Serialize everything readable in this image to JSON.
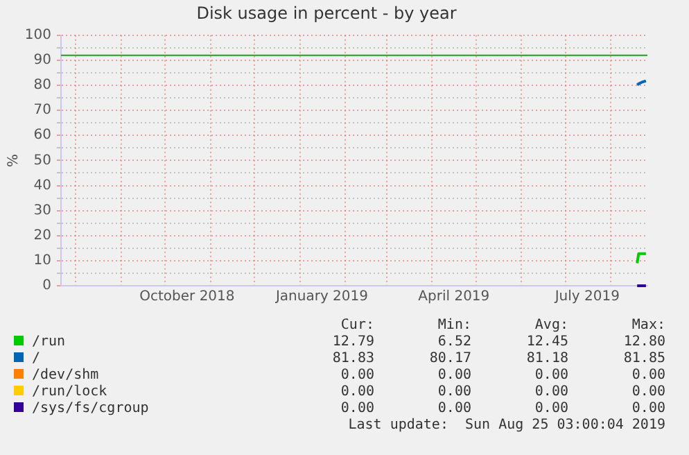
{
  "chart_data": {
    "type": "line",
    "title": "Disk usage in percent - by year",
    "ylabel": "%",
    "x": [
      "2019-08-19",
      "2019-08-20",
      "2019-08-22",
      "2019-08-25"
    ],
    "series": [
      {
        "name": "/run",
        "color": "#00cc00",
        "values": [
          9,
          12.8,
          12.8,
          12.8
        ]
      },
      {
        "name": "/",
        "color": "#0066b3",
        "values": [
          80.2,
          80.6,
          81.2,
          81.8
        ]
      },
      {
        "name": "/dev/shm",
        "color": "#ff8000",
        "values": [
          null,
          null,
          null,
          null
        ]
      },
      {
        "name": "/run/lock",
        "color": "#ffcc00",
        "values": [
          null,
          null,
          null,
          null
        ]
      },
      {
        "name": "/sys/fs/cgroup",
        "color": "#330099",
        "values": [
          0,
          0,
          0,
          0
        ]
      }
    ],
    "xlim": [
      "2018-07-22",
      "2019-08-26"
    ],
    "xticks": [
      {
        "value": "2018-08-01",
        "label": null
      },
      {
        "value": "2018-09-01",
        "label": null
      },
      {
        "value": "2018-10-01",
        "label": null
      },
      {
        "value": "2018-10-16",
        "label": "October 2018"
      },
      {
        "value": "2018-11-01",
        "label": null
      },
      {
        "value": "2018-12-01",
        "label": null
      },
      {
        "value": "2019-01-01",
        "label": null
      },
      {
        "value": "2019-01-16",
        "label": "January 2019"
      },
      {
        "value": "2019-02-01",
        "label": null
      },
      {
        "value": "2019-03-01",
        "label": null
      },
      {
        "value": "2019-04-01",
        "label": null
      },
      {
        "value": "2019-04-16",
        "label": "April 2019"
      },
      {
        "value": "2019-05-01",
        "label": null
      },
      {
        "value": "2019-06-01",
        "label": null
      },
      {
        "value": "2019-07-01",
        "label": null
      },
      {
        "value": "2019-07-16",
        "label": "July 2019"
      },
      {
        "value": "2019-08-01",
        "label": null
      }
    ],
    "ylim": [
      0,
      100
    ],
    "yticks": [
      0,
      {
        "value": 5,
        "label": null
      },
      10,
      {
        "value": 15,
        "label": null
      },
      20,
      {
        "value": 25,
        "label": null
      },
      30,
      {
        "value": 35,
        "label": null
      },
      40,
      {
        "value": 45,
        "label": null
      },
      50,
      {
        "value": 55,
        "label": null
      },
      60,
      {
        "value": 65,
        "label": null
      },
      70,
      {
        "value": 75,
        "label": null
      },
      80,
      {
        "value": 85,
        "label": null
      },
      90,
      {
        "value": 95,
        "label": null
      },
      100
    ],
    "grid": true,
    "legend": "bottom",
    "marker": "none",
    "line_style": "solid",
    "ref_lines": [
      {
        "axis": "y",
        "value": 92,
        "color": "#20a020"
      }
    ],
    "annotations": [
      "Cur:",
      "Min:",
      "Avg:",
      "Max:",
      "12.79",
      "6.52",
      "12.45",
      "12.80",
      "81.83",
      "80.17",
      "81.18",
      "81.85",
      "0.00",
      "0.00",
      "0.00",
      "0.00",
      "0.00",
      "0.00",
      "0.00",
      "0.00",
      "0.00",
      "0.00",
      "0.00",
      "0.00",
      "Last update:  Sun Aug 25 03:00:04 2019"
    ]
  }
}
